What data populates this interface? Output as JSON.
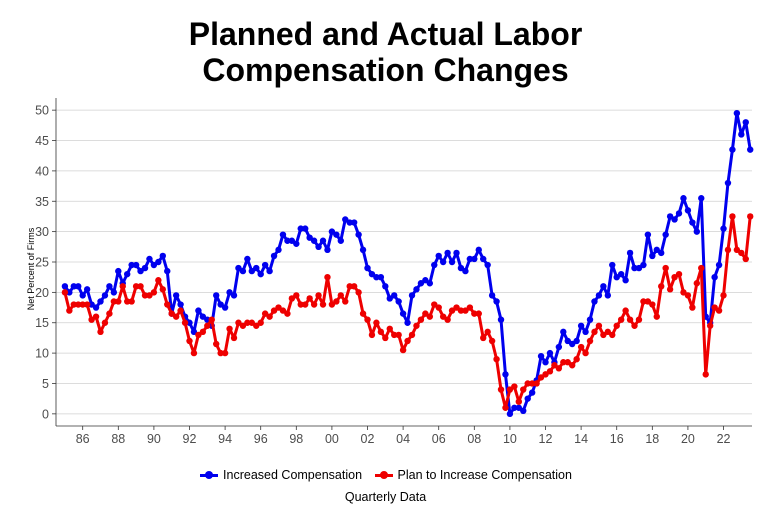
{
  "chart_data": {
    "type": "line",
    "title_lines": [
      "Planned and Actual Labor",
      "Compensation Changes"
    ],
    "ylabel": "Net Percent of Firms",
    "xlabel": "Quarterly Data",
    "ylim": [
      -2,
      52
    ],
    "xlim": [
      1984.5,
      2023.6
    ],
    "yticks": [
      0,
      5,
      10,
      15,
      20,
      25,
      30,
      35,
      40,
      45,
      50
    ],
    "xticks": [
      {
        "value": 1986.0,
        "label": "86"
      },
      {
        "value": 1988.0,
        "label": "88"
      },
      {
        "value": 1990.0,
        "label": "90"
      },
      {
        "value": 1992.0,
        "label": "92"
      },
      {
        "value": 1994.0,
        "label": "94"
      },
      {
        "value": 1996.0,
        "label": "96"
      },
      {
        "value": 1998.0,
        "label": "98"
      },
      {
        "value": 2000.0,
        "label": "00"
      },
      {
        "value": 2002.0,
        "label": "02"
      },
      {
        "value": 2004.0,
        "label": "04"
      },
      {
        "value": 2006.0,
        "label": "06"
      },
      {
        "value": 2008.0,
        "label": "08"
      },
      {
        "value": 2010.0,
        "label": "10"
      },
      {
        "value": 2012.0,
        "label": "12"
      },
      {
        "value": 2014.0,
        "label": "14"
      },
      {
        "value": 2016.0,
        "label": "16"
      },
      {
        "value": 2018.0,
        "label": "18"
      },
      {
        "value": 2020.0,
        "label": "20"
      },
      {
        "value": 2022.0,
        "label": "22"
      }
    ],
    "grid": "horizontal",
    "legend_position": "bottom",
    "series": [
      {
        "name": "Increased Compensation",
        "color": "#0000ee",
        "x_start": 1985.0,
        "x_step": 0.25,
        "values": [
          21,
          20,
          21,
          21,
          19.5,
          20.5,
          18,
          17.5,
          18.5,
          19.5,
          21,
          20,
          23.5,
          21.5,
          23,
          24.5,
          24.5,
          23.5,
          24,
          25.5,
          24.5,
          25,
          26,
          23.5,
          16.5,
          19.5,
          18,
          16,
          15,
          13.5,
          17,
          16,
          15.5,
          14.5,
          19.5,
          18,
          17.5,
          20,
          19.5,
          24,
          23.5,
          25.5,
          23.5,
          24,
          23,
          24.5,
          23.5,
          26,
          27,
          29.5,
          28.5,
          28.5,
          28,
          30.5,
          30.5,
          29,
          28.5,
          27.5,
          28.5,
          27,
          30,
          29.5,
          28.5,
          32,
          31.5,
          31.5,
          29.5,
          27,
          24,
          23,
          22.5,
          22.5,
          21,
          19,
          19.5,
          18.5,
          16.5,
          15,
          19.5,
          20.5,
          21.5,
          22,
          21.5,
          24.5,
          26,
          25,
          26.5,
          25,
          26.5,
          24,
          23.5,
          25.5,
          25.5,
          27,
          25.5,
          24.5,
          19.5,
          18.5,
          15.5,
          6.5,
          0,
          1,
          1,
          0.5,
          2.5,
          3.5,
          5.5,
          9.5,
          8.5,
          10,
          8.5,
          11,
          13.5,
          12,
          11.5,
          12,
          14.5,
          13.5,
          15.5,
          18.5,
          19.5,
          21,
          19.5,
          24.5,
          22.5,
          23,
          22,
          26.5,
          24,
          24,
          24.5,
          29.5,
          26,
          27,
          26.5,
          29.5,
          32.5,
          32,
          33,
          35.5,
          33.5,
          31.5,
          30,
          35.5,
          16,
          15,
          22.5,
          24.5,
          30.5,
          38,
          43.5,
          49.5,
          46,
          48,
          43.5
        ]
      },
      {
        "name": "Plan to Increase Compensation",
        "color": "#ee0000",
        "x_start": 1985.0,
        "x_step": 0.25,
        "values": [
          20,
          17,
          18,
          18,
          18,
          18,
          15.5,
          16,
          13.5,
          15,
          16.5,
          18.5,
          18.5,
          21,
          18.5,
          18.5,
          21,
          21,
          19.5,
          19.5,
          20,
          22,
          20.5,
          18,
          16.5,
          16,
          17,
          15,
          12,
          10,
          13,
          13.5,
          14.5,
          15.5,
          11.5,
          10,
          10,
          14,
          12.5,
          15,
          14.5,
          15,
          15,
          14.5,
          15,
          16.5,
          16,
          17,
          17.5,
          17,
          16.5,
          19,
          19.5,
          18,
          18,
          19,
          18,
          19.5,
          18,
          22.5,
          18,
          18.5,
          19.5,
          18.5,
          21,
          21,
          20,
          16.5,
          15.5,
          13,
          15,
          13.5,
          12.5,
          14,
          13,
          13,
          10.5,
          12,
          13,
          14.5,
          15.5,
          16.5,
          16,
          18,
          17.5,
          16,
          15.5,
          17,
          17.5,
          17,
          17,
          17.5,
          16.5,
          16.5,
          12.5,
          13.5,
          12,
          9,
          4,
          1,
          4,
          4.5,
          2,
          4,
          5,
          5,
          5,
          6,
          6.5,
          7,
          8,
          7.5,
          8.5,
          8.5,
          8,
          9,
          11,
          10,
          12,
          13.5,
          14.5,
          13,
          13.5,
          13,
          14.5,
          15.5,
          17,
          15.5,
          14.5,
          15.5,
          18.5,
          18.5,
          18,
          16,
          21,
          24,
          20.5,
          22.5,
          23,
          20,
          19.5,
          17.5,
          21.5,
          24,
          6.5,
          14.5,
          17.5,
          17,
          19.5,
          27,
          32.5,
          27,
          26.5,
          25.5,
          32.5
        ]
      }
    ]
  }
}
